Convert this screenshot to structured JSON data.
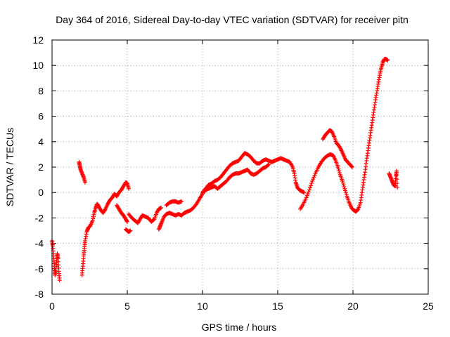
{
  "chart_data": {
    "type": "scatter",
    "title": "Day 364 of 2016, Sidereal Day-to-day VTEC variation (SDTVAR) for receiver pitn",
    "xlabel": "GPS time / hours",
    "ylabel": "SDTVAR / TECUs",
    "xlim": [
      0,
      25
    ],
    "ylim": [
      -8,
      12
    ],
    "xticks": [
      "0",
      "5",
      "10",
      "15",
      "20",
      "25"
    ],
    "yticks": [
      "-8",
      "-6",
      "-4",
      "-2",
      "0",
      "2",
      "4",
      "6",
      "8",
      "10",
      "12"
    ],
    "grid": true,
    "marker": "+",
    "color": "#ff0000",
    "series": [
      {
        "name": "SDTVAR",
        "segments": [
          [
            [
              0.0,
              -3.8
            ],
            [
              0.05,
              -4.2
            ],
            [
              0.1,
              -5.0
            ],
            [
              0.15,
              -5.8
            ],
            [
              0.2,
              -6.5
            ],
            [
              0.25,
              -6.1
            ],
            [
              0.3,
              -5.5
            ],
            [
              0.35,
              -4.8
            ],
            [
              0.4,
              -5.2
            ],
            [
              0.45,
              -6.2
            ],
            [
              0.5,
              -6.9
            ]
          ],
          [
            [
              1.8,
              2.4
            ],
            [
              1.85,
              2.1
            ],
            [
              1.9,
              1.8
            ],
            [
              2.0,
              1.5
            ],
            [
              2.1,
              1.2
            ],
            [
              2.2,
              0.8
            ]
          ],
          [
            [
              2.0,
              -6.5
            ],
            [
              2.05,
              -5.8
            ],
            [
              2.1,
              -5.0
            ],
            [
              2.15,
              -4.4
            ],
            [
              2.2,
              -3.8
            ],
            [
              2.3,
              -3.1
            ],
            [
              2.4,
              -2.8
            ],
            [
              2.55,
              -2.6
            ],
            [
              2.7,
              -2.2
            ],
            [
              2.8,
              -1.6
            ],
            [
              2.9,
              -1.2
            ],
            [
              3.0,
              -0.9
            ],
            [
              3.1,
              -1.1
            ],
            [
              3.25,
              -1.4
            ],
            [
              3.4,
              -1.6
            ],
            [
              3.55,
              -1.3
            ],
            [
              3.7,
              -0.9
            ],
            [
              3.85,
              -0.6
            ],
            [
              4.0,
              -0.4
            ],
            [
              4.15,
              -0.1
            ],
            [
              4.3,
              -0.3
            ],
            [
              4.45,
              0.0
            ],
            [
              4.6,
              0.2
            ],
            [
              4.75,
              0.5
            ],
            [
              4.9,
              0.8
            ],
            [
              5.0,
              0.7
            ],
            [
              5.1,
              0.3
            ]
          ],
          [
            [
              4.3,
              -1.0
            ],
            [
              4.45,
              -1.3
            ],
            [
              4.6,
              -1.6
            ],
            [
              4.75,
              -1.8
            ],
            [
              4.9,
              -2.1
            ],
            [
              5.0,
              -2.3
            ]
          ],
          [
            [
              4.9,
              -2.9
            ],
            [
              5.0,
              -3.0
            ],
            [
              5.1,
              -3.1
            ],
            [
              5.2,
              -3.0
            ]
          ],
          [
            [
              5.1,
              -1.7
            ],
            [
              5.3,
              -2.0
            ],
            [
              5.5,
              -2.2
            ],
            [
              5.7,
              -2.4
            ],
            [
              5.85,
              -2.1
            ],
            [
              6.0,
              -1.8
            ],
            [
              6.2,
              -1.9
            ],
            [
              6.4,
              -2.0
            ],
            [
              6.6,
              -2.3
            ],
            [
              6.8,
              -2.1
            ],
            [
              6.95,
              -1.6
            ],
            [
              7.1,
              -1.3
            ],
            [
              7.25,
              -1.2
            ]
          ],
          [
            [
              7.1,
              -2.9
            ],
            [
              7.2,
              -2.6
            ],
            [
              7.3,
              -2.3
            ],
            [
              7.45,
              -1.9
            ],
            [
              7.6,
              -1.7
            ],
            [
              7.8,
              -1.6
            ],
            [
              8.0,
              -1.7
            ],
            [
              8.2,
              -1.8
            ],
            [
              8.4,
              -1.7
            ],
            [
              8.6,
              -1.8
            ],
            [
              8.8,
              -1.6
            ],
            [
              9.0,
              -1.5
            ],
            [
              9.2,
              -1.4
            ],
            [
              9.4,
              -1.2
            ],
            [
              9.6,
              -0.9
            ],
            [
              9.8,
              -0.5
            ],
            [
              10.0,
              -0.1
            ],
            [
              10.2,
              0.2
            ],
            [
              10.4,
              0.3
            ],
            [
              10.6,
              0.4
            ],
            [
              10.8,
              0.5
            ],
            [
              11.0,
              0.3
            ],
            [
              11.2,
              0.5
            ],
            [
              11.4,
              0.7
            ],
            [
              11.6,
              0.9
            ],
            [
              11.8,
              1.2
            ],
            [
              12.0,
              1.4
            ],
            [
              12.2,
              1.5
            ],
            [
              12.4,
              1.5
            ],
            [
              12.6,
              1.6
            ],
            [
              12.8,
              1.7
            ],
            [
              13.0,
              1.8
            ],
            [
              13.2,
              1.5
            ],
            [
              13.4,
              1.4
            ],
            [
              13.6,
              1.5
            ],
            [
              13.8,
              1.7
            ],
            [
              14.0,
              1.9
            ],
            [
              14.2,
              2.0
            ],
            [
              14.4,
              2.2
            ]
          ],
          [
            [
              7.6,
              -1.0
            ],
            [
              7.8,
              -0.8
            ],
            [
              8.0,
              -0.7
            ],
            [
              8.2,
              -0.7
            ],
            [
              8.4,
              -0.8
            ],
            [
              8.6,
              -0.7
            ]
          ],
          [
            [
              10.0,
              0.0
            ],
            [
              10.2,
              0.3
            ],
            [
              10.4,
              0.6
            ],
            [
              10.6,
              0.7
            ],
            [
              10.8,
              0.9
            ],
            [
              11.0,
              1.0
            ],
            [
              11.2,
              1.2
            ],
            [
              11.4,
              1.5
            ],
            [
              11.6,
              1.8
            ],
            [
              11.8,
              2.1
            ],
            [
              12.0,
              2.3
            ],
            [
              12.2,
              2.4
            ],
            [
              12.4,
              2.5
            ],
            [
              12.6,
              2.8
            ],
            [
              12.8,
              3.1
            ],
            [
              13.0,
              3.0
            ],
            [
              13.2,
              2.8
            ],
            [
              13.4,
              2.5
            ],
            [
              13.6,
              2.3
            ],
            [
              13.8,
              2.3
            ],
            [
              14.0,
              2.5
            ],
            [
              14.2,
              2.6
            ],
            [
              14.4,
              2.5
            ],
            [
              14.6,
              2.4
            ],
            [
              14.8,
              2.5
            ],
            [
              15.0,
              2.6
            ],
            [
              15.2,
              2.7
            ],
            [
              15.4,
              2.6
            ],
            [
              15.6,
              2.5
            ],
            [
              15.8,
              2.4
            ],
            [
              16.0,
              2.0
            ],
            [
              16.1,
              1.5
            ],
            [
              16.2,
              0.8
            ],
            [
              16.3,
              0.4
            ],
            [
              16.45,
              0.2
            ],
            [
              16.6,
              0.1
            ],
            [
              16.75,
              0.0
            ]
          ],
          [
            [
              16.5,
              -1.3
            ],
            [
              16.7,
              -0.9
            ],
            [
              16.9,
              -0.4
            ],
            [
              17.1,
              0.2
            ],
            [
              17.3,
              0.9
            ],
            [
              17.5,
              1.5
            ],
            [
              17.7,
              2.0
            ],
            [
              17.9,
              2.4
            ],
            [
              18.1,
              2.7
            ],
            [
              18.3,
              2.9
            ],
            [
              18.5,
              3.0
            ],
            [
              18.7,
              2.9
            ],
            [
              18.85,
              2.5
            ],
            [
              19.0,
              2.0
            ],
            [
              19.15,
              1.4
            ],
            [
              19.3,
              0.9
            ],
            [
              19.45,
              0.3
            ],
            [
              19.6,
              -0.3
            ],
            [
              19.75,
              -0.8
            ],
            [
              19.9,
              -1.2
            ],
            [
              20.05,
              -1.4
            ],
            [
              20.2,
              -1.5
            ],
            [
              20.35,
              -1.3
            ],
            [
              20.5,
              -0.8
            ],
            [
              20.6,
              0.0
            ],
            [
              20.7,
              0.8
            ],
            [
              20.8,
              1.6
            ],
            [
              20.9,
              2.5
            ],
            [
              21.0,
              3.3
            ],
            [
              21.1,
              4.1
            ],
            [
              21.2,
              4.9
            ],
            [
              21.3,
              5.7
            ],
            [
              21.4,
              6.5
            ],
            [
              21.5,
              7.3
            ],
            [
              21.6,
              8.0
            ],
            [
              21.7,
              8.7
            ],
            [
              21.8,
              9.4
            ],
            [
              21.9,
              9.9
            ],
            [
              22.0,
              10.3
            ],
            [
              22.1,
              10.5
            ],
            [
              22.2,
              10.5
            ],
            [
              22.3,
              10.4
            ]
          ],
          [
            [
              18.0,
              4.2
            ],
            [
              18.15,
              4.5
            ],
            [
              18.3,
              4.7
            ],
            [
              18.45,
              4.9
            ],
            [
              18.6,
              4.8
            ],
            [
              18.75,
              4.4
            ],
            [
              18.9,
              3.9
            ],
            [
              19.05,
              3.7
            ],
            [
              19.2,
              3.4
            ],
            [
              19.35,
              3.0
            ],
            [
              19.5,
              2.6
            ],
            [
              19.65,
              2.4
            ],
            [
              19.8,
              2.2
            ],
            [
              19.95,
              2.0
            ]
          ],
          [
            [
              22.4,
              1.5
            ],
            [
              22.5,
              1.2
            ],
            [
              22.6,
              0.9
            ],
            [
              22.7,
              0.6
            ],
            [
              22.8,
              0.5
            ],
            [
              22.85,
              1.3
            ],
            [
              22.9,
              1.7
            ],
            [
              22.95,
              0.4
            ]
          ]
        ]
      }
    ]
  }
}
